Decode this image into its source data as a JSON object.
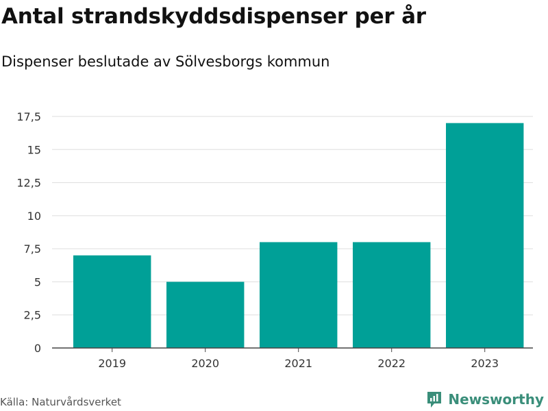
{
  "header": {
    "title": "Antal strandskyddsdispenser per år",
    "subtitle": "Dispenser beslutade av Sölvesborgs kommun"
  },
  "footer": {
    "source": "Källa: Naturvårdsverket",
    "brand": "Newsworthy"
  },
  "colors": {
    "bar": "#00a097",
    "grid": "#dddddd",
    "axis": "#444444",
    "brand": "#3a8e7a"
  },
  "icons": {
    "brand_logo": "newsworthy-logo-icon"
  },
  "chart_data": {
    "type": "bar",
    "title": "Antal strandskyddsdispenser per år",
    "subtitle": "Dispenser beslutade av Sölvesborgs kommun",
    "categories": [
      "2019",
      "2020",
      "2021",
      "2022",
      "2023"
    ],
    "values": [
      7,
      5,
      8,
      8,
      17
    ],
    "ylim": [
      0,
      17.5
    ],
    "yticks": [
      0,
      2.5,
      5,
      7.5,
      10,
      12.5,
      15,
      17.5
    ],
    "ytick_labels": [
      "0",
      "2,5",
      "5",
      "7,5",
      "10",
      "12,5",
      "15",
      "17,5"
    ],
    "xlabel": "",
    "ylabel": "",
    "grid": true,
    "legend": "none"
  }
}
